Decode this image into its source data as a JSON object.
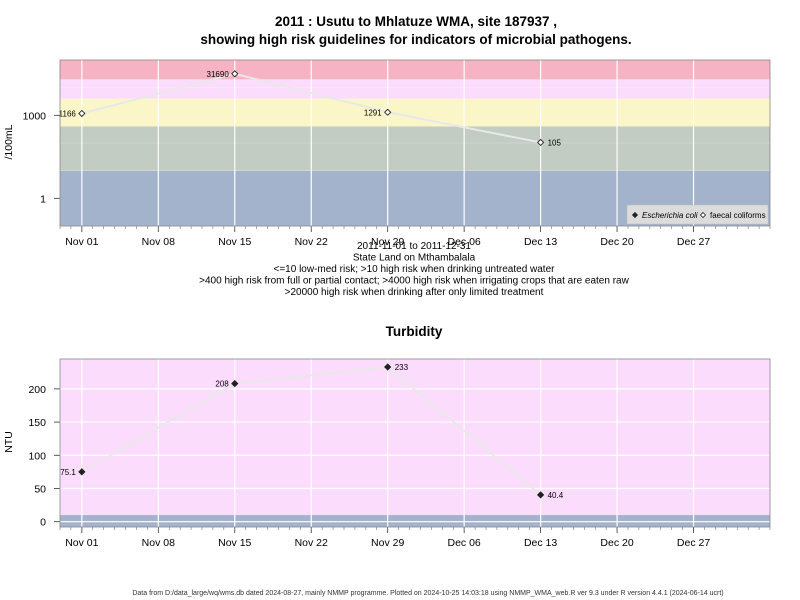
{
  "chart_data": [
    {
      "type": "scatter",
      "title_line1": "2011 : Usutu to Mhlatuze WMA, site 187937 ,",
      "title_line2": "showing high risk guidelines for indicators of microbial pathogens.",
      "ylabel": "/100mL",
      "y_scale": "log",
      "y_ticks": [
        "1000",
        "1"
      ],
      "x_ticks": [
        "Nov 01",
        "Nov 08",
        "Nov 15",
        "Nov 22",
        "Nov 29",
        "Dec 06",
        "Dec 13",
        "Dec 20",
        "Dec 27"
      ],
      "x_range": [
        "2011-10-30",
        "2012-01-03"
      ],
      "bands": [
        {
          "from": 0.1,
          "to": 10,
          "color": "#a3b3cb",
          "label": "<=10 low-med risk"
        },
        {
          "from": 10,
          "to": 400,
          "color": "#c2ccc3",
          "label": ">10 high risk when drinking untreated water"
        },
        {
          "from": 400,
          "to": 4000,
          "color": "#fbf6c8",
          "label": ">400 high risk from full or partial contact"
        },
        {
          "from": 4000,
          "to": 20000,
          "color": "#fcdcfc",
          "label": ">4000 high risk when irrigating crops"
        },
        {
          "from": 20000,
          "to": 100000,
          "color": "#f5b3c4",
          "label": ">20000 high risk when drinking after only limited treatment"
        }
      ],
      "series": [
        {
          "name": "faecal coliforms",
          "marker": "open-diamond",
          "points": [
            {
              "x": "2011-11-01",
              "y": 1166,
              "label": "1166"
            },
            {
              "x": "2011-11-15",
              "y": 31690,
              "label": "31690"
            },
            {
              "x": "2011-11-29",
              "y": 1291,
              "label": "1291"
            },
            {
              "x": "2011-12-13",
              "y": 105,
              "label": "105"
            }
          ]
        }
      ],
      "legend": {
        "position": "bottom-right",
        "items": [
          {
            "label": "Escherichia coli",
            "marker": "filled-diamond",
            "italic": true
          },
          {
            "label": "faecal coliforms",
            "marker": "open-diamond",
            "italic": false
          }
        ]
      },
      "subtitle_lines": [
        "2011-11-01 to 2011-12-31",
        "State Land on Mthambalala",
        "<=10 low-med risk; >10 high risk when drinking untreated water",
        ">400 high risk from full or partial contact; >4000 high risk when irrigating crops that are eaten raw",
        ">20000 high risk when drinking after only limited treatment"
      ]
    },
    {
      "type": "line",
      "title": "Turbidity",
      "ylabel": "NTU",
      "ylim": [
        -8,
        245
      ],
      "y_ticks": [
        0,
        50,
        100,
        150,
        200
      ],
      "x_ticks": [
        "Nov 01",
        "Nov 08",
        "Nov 15",
        "Nov 22",
        "Nov 29",
        "Dec 06",
        "Dec 13",
        "Dec 20",
        "Dec 27"
      ],
      "x_range": [
        "2011-10-30",
        "2012-01-03"
      ],
      "bands": [
        {
          "from": -8,
          "to": 10,
          "color": "#a3b3cb"
        },
        {
          "from": 10,
          "to": 245,
          "color": "#fcdcfc"
        }
      ],
      "series": [
        {
          "name": "",
          "marker": "filled-diamond",
          "points": [
            {
              "x": "2011-11-01",
              "y": 75.1,
              "label": "75.1"
            },
            {
              "x": "2011-11-15",
              "y": 208,
              "label": "208"
            },
            {
              "x": "2011-11-29",
              "y": 233,
              "label": "233"
            },
            {
              "x": "2011-12-13",
              "y": 40.4,
              "label": "40.4"
            }
          ]
        }
      ]
    }
  ],
  "footer": "Data from D:/data_large/wq/wms.db dated 2024-08-27, mainly NMMP programme. Plotted on 2024-10-25 14:03:18 using NMMP_WMA_web.R ver 9.3 under R version 4.4.1 (2024-06-14 ucrt)"
}
